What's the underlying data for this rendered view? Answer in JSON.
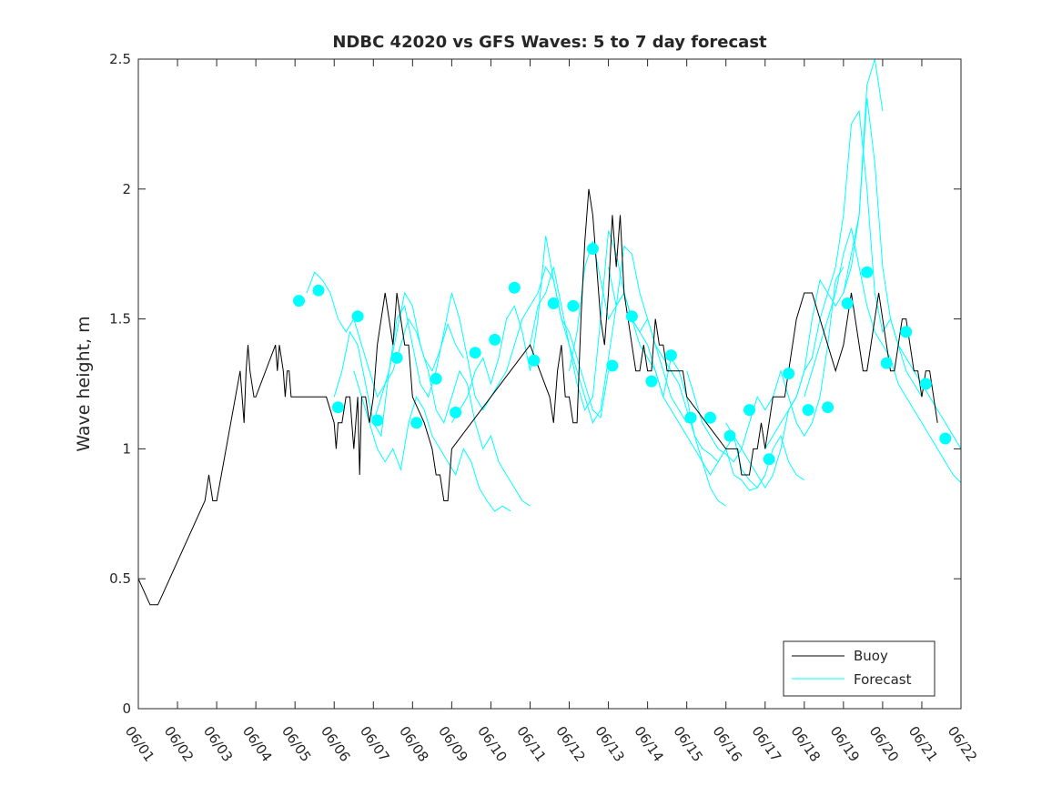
{
  "chart_data": {
    "type": "line",
    "title": "NDBC 42020 vs GFS Waves: 5 to 7 day forecast",
    "xlabel": "",
    "ylabel": "Wave height, m",
    "xlim": [
      0,
      21
    ],
    "ylim": [
      0,
      2.5
    ],
    "x_tick_labels": [
      "06/01",
      "06/02",
      "06/03",
      "06/04",
      "06/05",
      "06/06",
      "06/07",
      "06/08",
      "06/09",
      "06/10",
      "06/11",
      "06/12",
      "06/13",
      "06/14",
      "06/15",
      "06/16",
      "06/17",
      "06/18",
      "06/19",
      "06/20",
      "06/21",
      "06/22"
    ],
    "y_tick_labels": [
      "0",
      "0.5",
      "1",
      "1.5",
      "2",
      "2.5"
    ],
    "legend": {
      "placement": "bottom-right",
      "entries": [
        "Buoy",
        "Forecast"
      ]
    },
    "colors": {
      "buoy": "#000000",
      "forecast": "#00ffff",
      "axes": "#262626"
    },
    "series": [
      {
        "name": "Buoy",
        "x": [
          0.0,
          0.3,
          0.5,
          1.7,
          1.8,
          1.9,
          2.0,
          2.6,
          2.7,
          2.75,
          2.8,
          2.85,
          2.95,
          3.0,
          3.5,
          3.55,
          3.6,
          3.7,
          3.75,
          3.8,
          3.85,
          3.9,
          4.0,
          4.5,
          4.8,
          5.0,
          5.05,
          5.1,
          5.2,
          5.3,
          5.4,
          5.45,
          5.5,
          5.6,
          5.65,
          5.7,
          5.8,
          5.9,
          6.0,
          6.1,
          6.2,
          6.3,
          6.4,
          6.5,
          6.55,
          6.6,
          6.7,
          6.8,
          6.9,
          7.0,
          7.3,
          7.5,
          7.6,
          7.7,
          7.8,
          7.9,
          8.0,
          8.5,
          9.0,
          9.5,
          10.0,
          10.5,
          10.6,
          10.7,
          10.8,
          10.9,
          11.0,
          11.1,
          11.2,
          11.3,
          11.4,
          11.5,
          11.6,
          11.7,
          11.8,
          11.9,
          12.0,
          12.1,
          12.2,
          12.3,
          12.4,
          12.5,
          12.6,
          12.7,
          12.8,
          12.9,
          13.0,
          13.1,
          13.2,
          13.3,
          13.4,
          13.5,
          13.6,
          13.7,
          13.8,
          13.9,
          14.0,
          14.5,
          15.0,
          15.1,
          15.2,
          15.3,
          15.4,
          15.5,
          15.6,
          15.7,
          15.8,
          15.9,
          16.0,
          16.2,
          16.4,
          16.5,
          16.6,
          16.7,
          16.8,
          17.0,
          17.2,
          17.4,
          17.6,
          17.8,
          18.0,
          18.1,
          18.2,
          18.3,
          18.4,
          18.5,
          18.6,
          18.7,
          18.8,
          18.9,
          19.0,
          19.1,
          19.2,
          19.3,
          19.4,
          19.5,
          19.6,
          19.7,
          19.8,
          19.9,
          20.0,
          20.1,
          20.2,
          20.3,
          20.4
        ],
        "y": [
          0.5,
          0.4,
          0.4,
          0.8,
          0.9,
          0.8,
          0.8,
          1.3,
          1.1,
          1.3,
          1.4,
          1.3,
          1.2,
          1.2,
          1.4,
          1.3,
          1.4,
          1.3,
          1.2,
          1.3,
          1.3,
          1.2,
          1.2,
          1.2,
          1.2,
          1.1,
          1.0,
          1.1,
          1.1,
          1.2,
          1.2,
          1.1,
          1.0,
          1.2,
          0.9,
          1.2,
          1.2,
          1.1,
          1.2,
          1.4,
          1.5,
          1.6,
          1.5,
          1.4,
          1.5,
          1.6,
          1.5,
          1.4,
          1.4,
          1.2,
          1.1,
          1.0,
          0.9,
          0.9,
          0.8,
          0.8,
          1.0,
          1.1,
          1.2,
          1.3,
          1.4,
          1.2,
          1.1,
          1.3,
          1.4,
          1.2,
          1.2,
          1.1,
          1.1,
          1.5,
          1.8,
          2.0,
          1.9,
          1.7,
          1.5,
          1.4,
          1.6,
          1.9,
          1.7,
          1.9,
          1.6,
          1.5,
          1.4,
          1.3,
          1.3,
          1.4,
          1.3,
          1.3,
          1.5,
          1.4,
          1.4,
          1.3,
          1.3,
          1.3,
          1.3,
          1.3,
          1.2,
          1.1,
          1.0,
          1.0,
          1.0,
          1.0,
          0.9,
          0.9,
          0.9,
          1.0,
          1.0,
          1.1,
          1.0,
          1.2,
          1.2,
          1.2,
          1.3,
          1.4,
          1.5,
          1.6,
          1.6,
          1.5,
          1.4,
          1.3,
          1.4,
          1.5,
          1.6,
          1.5,
          1.4,
          1.3,
          1.3,
          1.4,
          1.5,
          1.6,
          1.5,
          1.4,
          1.3,
          1.3,
          1.4,
          1.5,
          1.5,
          1.4,
          1.3,
          1.3,
          1.2,
          1.3,
          1.3,
          1.2,
          1.1
        ]
      },
      {
        "name": "Forecast",
        "x": [
          4.1,
          4.6,
          5.1,
          5.6,
          6.1,
          6.6,
          7.1,
          7.6,
          8.1,
          8.6,
          9.1,
          9.6,
          10.1,
          10.6,
          11.1,
          11.6,
          12.1,
          12.6,
          13.1,
          13.6,
          14.1,
          14.6,
          15.1,
          15.6,
          16.1,
          16.6,
          17.1,
          17.6,
          18.1,
          18.6,
          19.1,
          19.6,
          20.1,
          20.6
        ],
        "y": [
          1.57,
          1.61,
          1.16,
          1.51,
          1.11,
          1.35,
          1.1,
          1.27,
          1.14,
          1.37,
          1.42,
          1.62,
          1.34,
          1.56,
          1.55,
          1.77,
          1.32,
          1.51,
          1.26,
          1.36,
          1.12,
          1.12,
          1.05,
          1.15,
          0.96,
          1.29,
          1.15,
          1.16,
          1.56,
          1.68,
          1.33,
          1.45,
          1.25,
          1.04
        ]
      }
    ],
    "forecast_runs": [
      {
        "x": [
          4.3,
          4.5,
          4.7,
          4.9,
          5.1,
          5.3,
          5.5,
          5.7,
          5.9,
          6.1,
          6.3,
          6.5,
          6.7,
          6.9,
          7.1,
          7.3,
          7.5,
          7.7,
          7.9,
          8.1,
          8.3
        ],
        "y": [
          1.6,
          1.68,
          1.65,
          1.6,
          1.5,
          1.45,
          1.5,
          1.4,
          1.3,
          1.2,
          1.25,
          1.3,
          1.4,
          1.5,
          1.45,
          1.35,
          1.3,
          1.38,
          1.48,
          1.4,
          1.35
        ]
      },
      {
        "x": [
          5.0,
          5.2,
          5.4,
          5.6,
          5.8,
          6.0,
          6.2,
          6.4,
          6.6,
          6.8,
          7.0,
          7.2,
          7.4,
          7.6,
          7.8,
          8.0,
          8.2,
          8.4,
          8.6,
          8.8,
          9.0
        ],
        "y": [
          1.2,
          1.3,
          1.45,
          1.4,
          1.25,
          1.1,
          1.05,
          1.3,
          1.5,
          1.55,
          1.4,
          1.25,
          1.2,
          1.3,
          1.45,
          1.6,
          1.5,
          1.35,
          1.2,
          1.15,
          1.2
        ]
      },
      {
        "x": [
          5.5,
          5.7,
          5.9,
          6.1,
          6.3,
          6.5,
          6.7,
          6.9,
          7.1,
          7.3,
          7.5,
          7.7,
          7.9,
          8.1,
          8.3,
          8.5,
          8.7,
          8.9,
          9.1,
          9.3,
          9.5
        ],
        "y": [
          1.3,
          1.2,
          1.1,
          1.0,
          0.95,
          1.0,
          0.92,
          1.1,
          1.2,
          1.15,
          1.05,
          1.0,
          0.95,
          0.9,
          1.0,
          0.95,
          0.85,
          0.8,
          0.76,
          0.78,
          0.76
        ]
      },
      {
        "x": [
          6.0,
          6.2,
          6.4,
          6.6,
          6.8,
          7.0,
          7.2,
          7.4,
          7.6,
          7.8,
          8.0,
          8.2,
          8.4,
          8.6,
          8.8,
          9.0,
          9.2,
          9.4,
          9.6,
          9.8,
          10.0
        ],
        "y": [
          1.1,
          1.2,
          1.3,
          1.45,
          1.6,
          1.55,
          1.4,
          1.3,
          1.15,
          1.1,
          1.2,
          1.3,
          1.25,
          1.1,
          1.0,
          1.05,
          0.95,
          0.9,
          0.85,
          0.8,
          0.78
        ]
      },
      {
        "x": [
          8.0,
          8.2,
          8.4,
          8.6,
          8.8,
          9.0,
          9.2,
          9.4,
          9.6,
          9.8,
          10.0,
          10.2,
          10.4,
          10.6,
          10.8,
          11.0,
          11.2,
          11.4,
          11.6,
          11.8,
          12.0
        ],
        "y": [
          1.1,
          1.15,
          1.2,
          1.3,
          1.35,
          1.25,
          1.35,
          1.5,
          1.55,
          1.45,
          1.3,
          1.5,
          1.82,
          1.65,
          1.5,
          1.45,
          1.35,
          1.25,
          1.15,
          1.12,
          1.3
        ]
      },
      {
        "x": [
          9.0,
          9.2,
          9.4,
          9.6,
          9.8,
          10.0,
          10.2,
          10.4,
          10.6,
          10.8,
          11.0,
          11.2,
          11.4,
          11.6,
          11.8,
          12.0,
          12.2,
          12.4,
          12.6,
          12.8,
          13.0
        ],
        "y": [
          1.2,
          1.25,
          1.3,
          1.4,
          1.5,
          1.55,
          1.6,
          1.7,
          1.65,
          1.5,
          1.4,
          1.3,
          1.2,
          1.1,
          1.15,
          1.35,
          1.55,
          1.78,
          1.75,
          1.6,
          1.5
        ]
      },
      {
        "x": [
          10.0,
          10.2,
          10.4,
          10.6,
          10.8,
          11.0,
          11.2,
          11.4,
          11.6,
          11.8,
          12.0,
          12.2,
          12.4,
          12.6,
          12.8,
          13.0,
          13.2,
          13.4,
          13.6,
          13.8,
          14.0
        ],
        "y": [
          1.4,
          1.55,
          1.6,
          1.7,
          1.55,
          1.4,
          1.25,
          1.15,
          1.2,
          1.5,
          1.84,
          1.75,
          1.6,
          1.5,
          1.45,
          1.5,
          1.4,
          1.3,
          1.2,
          1.15,
          1.1
        ]
      },
      {
        "x": [
          11.0,
          11.2,
          11.4,
          11.6,
          11.8,
          12.0,
          12.2,
          12.4,
          12.6,
          12.8,
          13.0,
          13.2,
          13.4,
          13.6,
          13.8,
          14.0,
          14.2,
          14.4,
          14.6,
          14.8,
          15.0
        ],
        "y": [
          1.3,
          1.45,
          1.7,
          1.8,
          1.65,
          1.5,
          1.55,
          1.6,
          1.5,
          1.45,
          1.4,
          1.3,
          1.2,
          1.35,
          1.3,
          1.2,
          1.05,
          0.95,
          0.85,
          0.8,
          0.78
        ]
      },
      {
        "x": [
          12.0,
          12.2,
          12.4,
          12.6,
          12.8,
          13.0,
          13.2,
          13.4,
          13.6,
          13.8,
          14.0,
          14.2,
          14.4,
          14.6,
          14.8,
          15.0,
          15.2,
          15.4,
          15.6,
          15.8,
          16.0
        ],
        "y": [
          1.7,
          1.55,
          1.6,
          1.5,
          1.4,
          1.35,
          1.3,
          1.2,
          1.15,
          1.1,
          1.05,
          1.0,
          0.95,
          0.9,
          0.95,
          1.0,
          0.9,
          0.88,
          0.84,
          0.85,
          0.9
        ]
      },
      {
        "x": [
          13.0,
          13.2,
          13.4,
          13.6,
          13.8,
          14.0,
          14.2,
          14.4,
          14.6,
          14.8,
          15.0,
          15.2,
          15.4,
          15.6,
          15.8,
          16.0,
          16.2,
          16.4,
          16.6,
          16.8,
          17.0
        ],
        "y": [
          1.5,
          1.4,
          1.35,
          1.3,
          1.25,
          1.15,
          1.05,
          1.0,
          0.98,
          0.95,
          1.0,
          1.05,
          0.92,
          0.88,
          0.85,
          0.9,
          1.0,
          1.05,
          0.95,
          0.9,
          0.88
        ]
      },
      {
        "x": [
          14.0,
          14.2,
          14.4,
          14.6,
          14.8,
          15.0,
          15.2,
          15.4,
          15.6,
          15.8,
          16.0,
          16.2,
          16.4,
          16.6,
          16.8,
          17.0,
          17.2,
          17.4,
          17.6,
          17.8,
          18.0
        ],
        "y": [
          1.3,
          1.2,
          1.1,
          1.05,
          1.0,
          0.98,
          0.95,
          1.0,
          1.1,
          1.2,
          1.15,
          1.2,
          1.3,
          1.2,
          1.1,
          1.05,
          1.1,
          1.2,
          1.4,
          1.65,
          1.7
        ]
      },
      {
        "x": [
          15.0,
          15.2,
          15.4,
          15.6,
          15.8,
          16.0,
          16.2,
          16.4,
          16.6,
          16.8,
          17.0,
          17.2,
          17.4,
          17.6,
          17.8,
          18.0,
          18.2,
          18.4,
          18.6,
          18.8,
          19.0
        ],
        "y": [
          1.1,
          1.05,
          1.0,
          0.95,
          0.9,
          0.85,
          0.9,
          1.0,
          1.15,
          1.2,
          1.3,
          1.5,
          1.65,
          1.6,
          1.55,
          1.6,
          1.75,
          1.9,
          2.4,
          2.5,
          2.3
        ]
      },
      {
        "x": [
          16.0,
          16.2,
          16.4,
          16.6,
          16.8,
          17.0,
          17.2,
          17.4,
          17.6,
          17.8,
          18.0,
          18.2,
          18.4,
          18.6,
          18.8,
          19.0,
          19.2,
          19.4,
          19.6,
          19.8,
          20.0
        ],
        "y": [
          1.0,
          1.05,
          1.1,
          1.15,
          1.2,
          1.3,
          1.35,
          1.5,
          1.6,
          1.7,
          1.9,
          2.25,
          2.3,
          2.0,
          1.6,
          1.45,
          1.5,
          1.4,
          1.3,
          1.25,
          1.2
        ]
      },
      {
        "x": [
          17.0,
          17.2,
          17.4,
          17.6,
          17.8,
          18.0,
          18.2,
          18.4,
          18.6,
          18.8,
          19.0,
          19.2,
          19.4,
          19.6,
          19.8,
          20.0,
          20.2,
          20.4,
          20.6,
          20.8,
          21.0
        ],
        "y": [
          1.2,
          1.3,
          1.4,
          1.5,
          1.6,
          1.75,
          1.85,
          1.7,
          1.55,
          1.45,
          1.4,
          1.35,
          1.25,
          1.2,
          1.15,
          1.1,
          1.05,
          1.0,
          0.95,
          0.9,
          0.87
        ]
      },
      {
        "x": [
          18.0,
          18.2,
          18.4,
          18.6,
          18.8,
          19.0,
          19.2,
          19.4,
          19.6,
          19.8,
          20.0,
          20.2,
          20.4,
          20.6,
          20.8,
          21.0
        ],
        "y": [
          1.6,
          1.7,
          1.9,
          2.35,
          2.1,
          1.7,
          1.5,
          1.4,
          1.35,
          1.3,
          1.25,
          1.2,
          1.15,
          1.1,
          1.05,
          1.0
        ]
      }
    ]
  }
}
